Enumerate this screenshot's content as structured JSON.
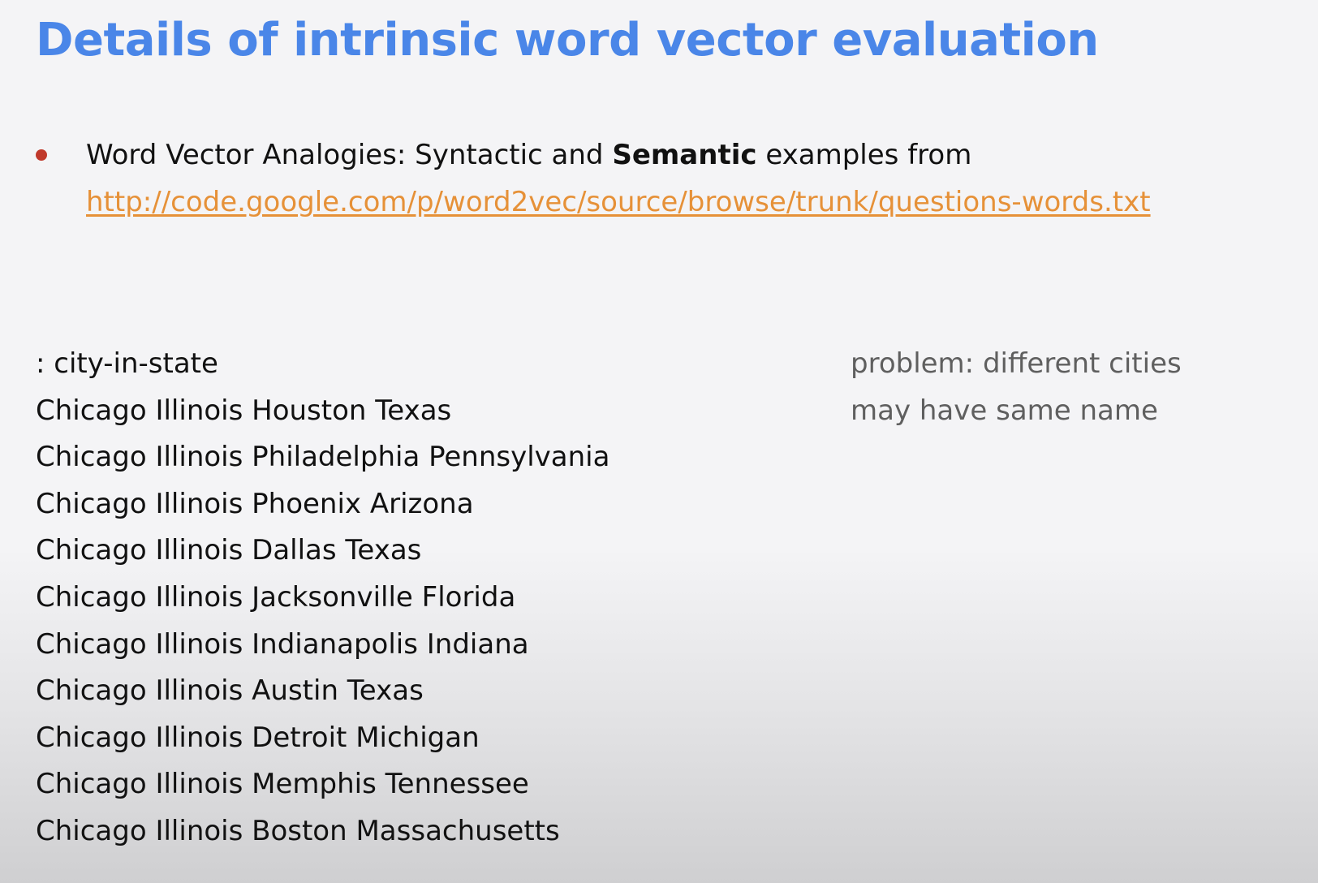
{
  "slide": {
    "title": "Details of intrinsic word vector evaluation",
    "bullet": {
      "text_before": "Word Vector Analogies: Syntactic and ",
      "bold_word": "Semantic",
      "text_after": " examples from",
      "link_text": "http://code.google.com/p/word2vec/source/browse/trunk/questions-words.txt"
    },
    "section_heading": ": city-in-state",
    "examples": [
      "Chicago Illinois Houston Texas",
      "Chicago Illinois Philadelphia Pennsylvania",
      "Chicago Illinois Phoenix Arizona",
      "Chicago Illinois Dallas Texas",
      "Chicago Illinois Jacksonville Florida",
      "Chicago Illinois Indianapolis Indiana",
      "Chicago Illinois Austin Texas",
      "Chicago Illinois Detroit Michigan",
      "Chicago Illinois Memphis Tennessee",
      "Chicago Illinois Boston Massachusetts"
    ],
    "note_lines": [
      "problem: different cities",
      "may have same name"
    ],
    "colors": {
      "title": "#4a86e8",
      "link": "#e69138",
      "bullet": "#c0392b",
      "note": "#5f5f5f"
    }
  }
}
